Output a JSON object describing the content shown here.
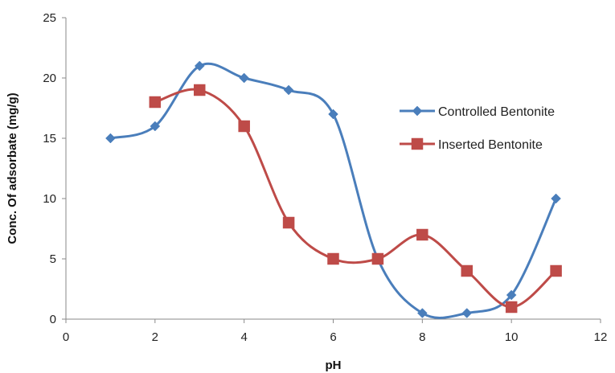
{
  "chart_data": {
    "type": "line",
    "title": "",
    "xlabel": "pH",
    "ylabel": "Conc. Of adsorbate (mg/g)",
    "xlim": [
      0,
      12
    ],
    "ylim": [
      0,
      25
    ],
    "xticks": [
      0,
      2,
      4,
      6,
      8,
      10,
      12
    ],
    "yticks": [
      0,
      5,
      10,
      15,
      20,
      25
    ],
    "grid": false,
    "smooth": true,
    "legend_position": "right",
    "series": [
      {
        "name": "Controlled Bentonite",
        "color": "#4a7ebb",
        "marker": "diamond",
        "x": [
          1,
          2,
          3,
          4,
          5,
          6,
          7,
          8,
          9,
          10,
          11
        ],
        "y": [
          15,
          16,
          21,
          20,
          19,
          17,
          5,
          0.5,
          0.5,
          2,
          10
        ]
      },
      {
        "name": "Inserted Bentonite",
        "color": "#be4b48",
        "marker": "square",
        "x": [
          2,
          3,
          4,
          5,
          6,
          7,
          8,
          9,
          10,
          11
        ],
        "y": [
          18,
          19,
          16,
          8,
          5,
          5,
          7,
          4,
          1,
          4
        ]
      }
    ]
  }
}
